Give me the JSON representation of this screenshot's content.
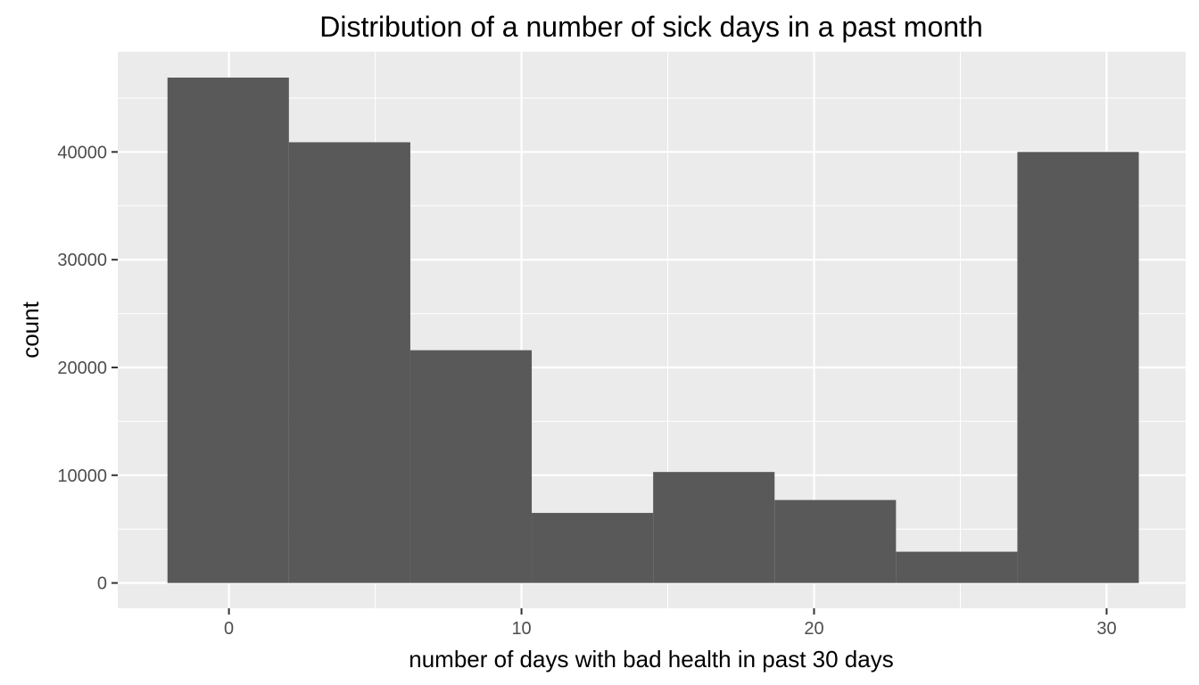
{
  "colors": {
    "panel_background": "#ebebeb",
    "grid_major": "#ffffff",
    "bar_fill": "#595959",
    "tick_color": "#333333",
    "tick_label_color": "#4d4d4d"
  },
  "chart_data": {
    "type": "bar",
    "title": "Distribution of a number of sick days in a past month",
    "xlabel": "number of days with bad health  in past 30 days",
    "ylabel": "count",
    "xlim": [
      -3.8,
      32.7
    ],
    "ylim": [
      -2350,
      49300
    ],
    "grid": true,
    "legend": "none",
    "x_ticks": [
      0,
      10,
      20,
      30
    ],
    "x_tick_labels": [
      "0",
      "10",
      "20",
      "30"
    ],
    "y_ticks": [
      0,
      10000,
      20000,
      30000,
      40000
    ],
    "y_tick_labels": [
      "0",
      "10000",
      "20000",
      "30000",
      "40000"
    ],
    "bins": [
      {
        "x_start": -2.1,
        "x_end": 2.05,
        "count": 46900
      },
      {
        "x_start": 2.05,
        "x_end": 6.2,
        "count": 40900
      },
      {
        "x_start": 6.2,
        "x_end": 10.35,
        "count": 21600
      },
      {
        "x_start": 10.35,
        "x_end": 14.5,
        "count": 6500
      },
      {
        "x_start": 14.5,
        "x_end": 18.65,
        "count": 10300
      },
      {
        "x_start": 18.65,
        "x_end": 22.8,
        "count": 7700
      },
      {
        "x_start": 22.8,
        "x_end": 26.95,
        "count": 2900
      },
      {
        "x_start": 26.95,
        "x_end": 31.1,
        "count": 40000
      }
    ]
  }
}
